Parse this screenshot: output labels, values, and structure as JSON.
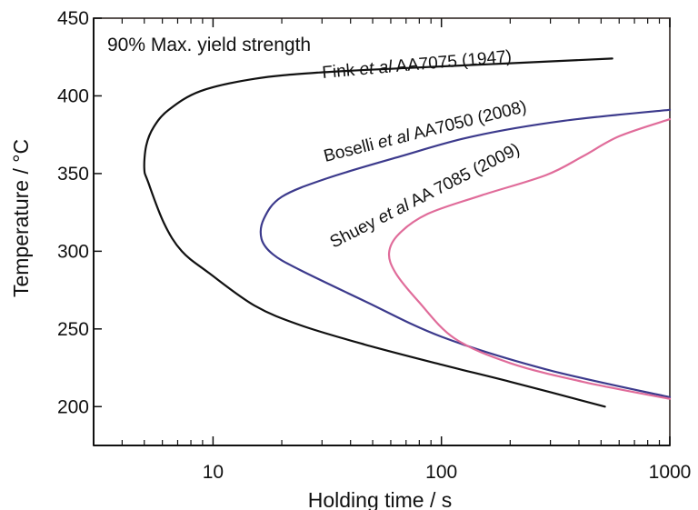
{
  "chart_data": {
    "type": "line",
    "title": "90% Max. yield strength",
    "xlabel": "Holding time / s",
    "ylabel": "Temperature / °C",
    "xscale": "log",
    "xlim": [
      3,
      1000
    ],
    "ylim": [
      175,
      450
    ],
    "x_ticks": [
      {
        "value": 10,
        "label": "10"
      },
      {
        "value": 100,
        "label": "100"
      },
      {
        "value": 1000,
        "label": "1000"
      }
    ],
    "y_ticks": [
      {
        "value": 200,
        "label": "200"
      },
      {
        "value": 250,
        "label": "250"
      },
      {
        "value": 300,
        "label": "300"
      },
      {
        "value": 350,
        "label": "350"
      },
      {
        "value": 400,
        "label": "400"
      },
      {
        "value": 450,
        "label": "450"
      }
    ],
    "grid": false,
    "series": [
      {
        "name": "Fink et al AA7075 (1947)",
        "label_prefix": "Fink ",
        "label_italic": "et al",
        "label_suffix": " AA7075 (1947)",
        "color": "#111111",
        "points": [
          [
            520,
            200
          ],
          [
            200,
            216
          ],
          [
            100,
            227
          ],
          [
            46,
            240
          ],
          [
            24,
            252.5
          ],
          [
            15.2,
            265
          ],
          [
            9.6,
            286
          ],
          [
            7.3,
            300
          ],
          [
            6.1,
            318
          ],
          [
            5.2,
            344.5
          ],
          [
            5.0,
            353
          ],
          [
            5.1,
            368
          ],
          [
            5.5,
            380
          ],
          [
            6.4,
            391
          ],
          [
            8.8,
            403
          ],
          [
            15.2,
            411
          ],
          [
            29,
            415
          ],
          [
            72.5,
            418
          ],
          [
            199,
            421
          ],
          [
            560,
            424
          ]
        ]
      },
      {
        "name": "Boselli et al AA7050 (2008)",
        "label_prefix": "Boselli ",
        "label_italic": "et al",
        "label_suffix": " AA7050 (2008)",
        "color": "#3c3a8c",
        "points": [
          [
            1000,
            206
          ],
          [
            287,
            224
          ],
          [
            100,
            245
          ],
          [
            46,
            268
          ],
          [
            24,
            288
          ],
          [
            18.3,
            298
          ],
          [
            16.3,
            308
          ],
          [
            16.7,
            321
          ],
          [
            20,
            335
          ],
          [
            31.7,
            347
          ],
          [
            66,
            361
          ],
          [
            138,
            374
          ],
          [
            345,
            384
          ],
          [
            1000,
            391
          ]
        ]
      },
      {
        "name": "Shuey et al AA 7085 (2009)",
        "label_prefix": "Shuey ",
        "label_italic": "et al",
        "label_suffix": " AA 7085 (2009)",
        "color": "#e06c9a",
        "points": [
          [
            1000,
            205
          ],
          [
            415,
            216
          ],
          [
            200,
            228
          ],
          [
            114,
            244
          ],
          [
            79,
            268
          ],
          [
            63,
            286
          ],
          [
            59,
            299
          ],
          [
            65,
            311
          ],
          [
            87,
            324
          ],
          [
            150,
            336
          ],
          [
            287,
            349
          ],
          [
            415,
            361
          ],
          [
            600,
            374
          ],
          [
            1000,
            385
          ]
        ]
      }
    ]
  }
}
